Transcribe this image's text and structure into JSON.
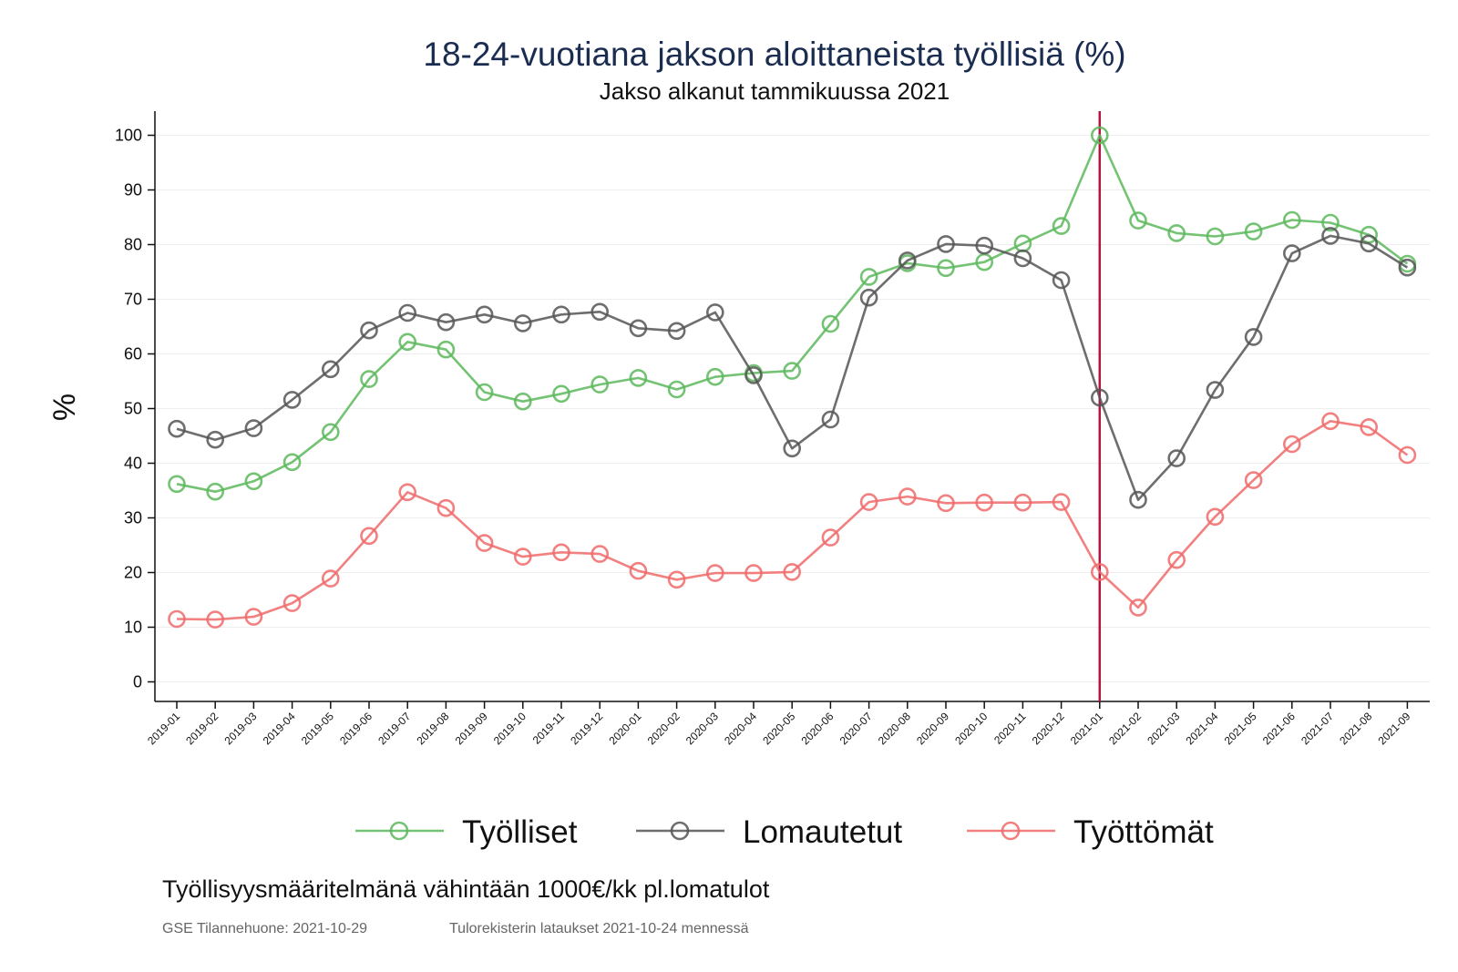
{
  "chart_data": {
    "type": "line",
    "title": "18-24-vuotiana jakson aloittaneista työllisiä (%)",
    "subtitle": "Jakso alkanut tammikuussa 2021",
    "ylabel": "%",
    "xlabel": "",
    "ylim": [
      0,
      100
    ],
    "yticks": [
      0,
      10,
      20,
      30,
      40,
      50,
      60,
      70,
      80,
      90,
      100
    ],
    "grid": true,
    "legend_position": "bottom",
    "vertical_marker": {
      "x": "2021-01",
      "color": "#b5133f"
    },
    "categories": [
      "2019-01",
      "2019-02",
      "2019-03",
      "2019-04",
      "2019-05",
      "2019-06",
      "2019-07",
      "2019-08",
      "2019-09",
      "2019-10",
      "2019-11",
      "2019-12",
      "2020-01",
      "2020-02",
      "2020-03",
      "2020-04",
      "2020-05",
      "2020-06",
      "2020-07",
      "2020-08",
      "2020-09",
      "2020-10",
      "2020-11",
      "2020-12",
      "2021-01",
      "2021-02",
      "2021-03",
      "2021-04",
      "2021-05",
      "2021-06",
      "2021-07",
      "2021-08",
      "2021-09"
    ],
    "series": [
      {
        "name": "Työlliset",
        "color": "#5cb85c",
        "values": [
          36.2,
          34.8,
          36.7,
          40.2,
          45.7,
          55.4,
          62.2,
          60.8,
          53.0,
          51.3,
          52.7,
          54.4,
          55.6,
          53.5,
          55.8,
          56.5,
          56.9,
          65.5,
          74.1,
          76.6,
          75.7,
          76.8,
          80.2,
          83.4,
          100.0,
          84.4,
          82.1,
          81.5,
          82.4,
          84.5,
          84.0,
          81.8,
          76.5
        ]
      },
      {
        "name": "Lomautetut",
        "color": "#555555",
        "values": [
          46.3,
          44.3,
          46.4,
          51.6,
          57.2,
          64.3,
          67.5,
          65.8,
          67.2,
          65.6,
          67.2,
          67.7,
          64.7,
          64.2,
          67.6,
          56.1,
          42.7,
          48.0,
          70.3,
          77.1,
          80.1,
          79.8,
          77.5,
          73.5,
          52.0,
          33.3,
          40.9,
          53.4,
          63.1,
          78.4,
          81.6,
          80.2,
          75.8
        ]
      },
      {
        "name": "Työttömät",
        "color": "#f06a6a",
        "values": [
          11.5,
          11.4,
          11.9,
          14.4,
          18.9,
          26.7,
          34.7,
          31.8,
          25.4,
          22.9,
          23.7,
          23.4,
          20.3,
          18.7,
          19.9,
          19.9,
          20.1,
          26.4,
          32.9,
          33.9,
          32.7,
          32.8,
          32.8,
          32.9,
          20.1,
          13.6,
          22.3,
          30.2,
          36.9,
          43.5,
          47.7,
          46.6,
          41.5
        ]
      }
    ]
  },
  "footer": {
    "note": "Työllisyysmääritelmänä vähintään 1000€/kk pl.lomatulot",
    "source_date": "GSE Tilannehuone: 2021-10-29",
    "source_registry": "Tulorekisterin lataukset 2021-10-24 mennessä"
  }
}
